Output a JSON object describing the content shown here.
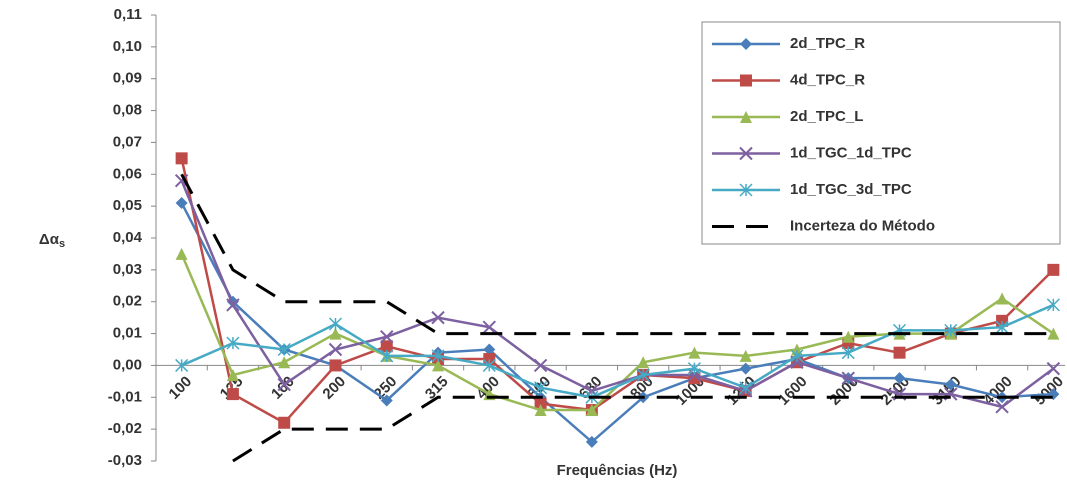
{
  "chart_data": {
    "type": "line",
    "x_label": "Frequências (Hz)",
    "y_label": {
      "main": "Δα",
      "sub": "s"
    },
    "categories": [
      "100",
      "125",
      "160",
      "200",
      "250",
      "315",
      "400",
      "500",
      "630",
      "800",
      "1000",
      "1250",
      "1600",
      "2000",
      "2500",
      "3150",
      "4000",
      "5000"
    ],
    "ylim": [
      -0.03,
      0.11
    ],
    "yticks": [
      {
        "value": -0.03,
        "label": "-0,03"
      },
      {
        "value": -0.02,
        "label": "-0,02"
      },
      {
        "value": -0.01,
        "label": "-0,01"
      },
      {
        "value": 0,
        "label": "0,00"
      },
      {
        "value": 0.01,
        "label": "0,01"
      },
      {
        "value": 0.02,
        "label": "0,02"
      },
      {
        "value": 0.03,
        "label": "0,03"
      },
      {
        "value": 0.04,
        "label": "0,04"
      },
      {
        "value": 0.05,
        "label": "0,05"
      },
      {
        "value": 0.06,
        "label": "0,06"
      },
      {
        "value": 0.07,
        "label": "0,07"
      },
      {
        "value": 0.08,
        "label": "0,08"
      },
      {
        "value": 0.09,
        "label": "0,09"
      },
      {
        "value": 0.1,
        "label": "0,10"
      },
      {
        "value": 0.11,
        "label": "0,11"
      }
    ],
    "legend": "top-right",
    "series": [
      {
        "name": "2d_TPC_R",
        "color": "#4a7ebb",
        "marker": "diamond",
        "values": [
          0.051,
          0.02,
          0.005,
          0.0,
          -0.011,
          0.004,
          0.005,
          -0.01,
          -0.024,
          -0.01,
          -0.004,
          -0.001,
          0.002,
          -0.004,
          -0.004,
          -0.006,
          -0.01,
          -0.009
        ]
      },
      {
        "name": "4d_TPC_R",
        "color": "#be4b48",
        "marker": "square",
        "values": [
          0.065,
          -0.009,
          -0.018,
          0.0,
          0.006,
          0.002,
          0.002,
          -0.012,
          -0.014,
          -0.003,
          -0.004,
          -0.008,
          0.001,
          0.007,
          0.004,
          0.01,
          0.014,
          0.03
        ]
      },
      {
        "name": "2d_TPC_L",
        "color": "#98b954",
        "marker": "triangle",
        "values": [
          0.035,
          -0.003,
          0.001,
          0.01,
          0.003,
          0.0,
          -0.009,
          -0.014,
          -0.014,
          0.001,
          0.004,
          0.003,
          0.005,
          0.009,
          0.01,
          0.01,
          0.021,
          0.01
        ]
      },
      {
        "name": "1d_TGC_1d_TPC",
        "color": "#7d60a0",
        "marker": "x",
        "values": [
          0.058,
          0.019,
          -0.006,
          0.005,
          0.009,
          0.015,
          0.012,
          0.0,
          -0.008,
          -0.003,
          -0.003,
          -0.008,
          0.001,
          -0.004,
          -0.009,
          -0.009,
          -0.013,
          -0.001
        ]
      },
      {
        "name": "1d_TGC_3d_TPC",
        "color": "#46aac5",
        "marker": "star",
        "values": [
          0.0,
          0.007,
          0.005,
          0.013,
          0.003,
          0.003,
          0.0,
          -0.007,
          -0.01,
          -0.003,
          -0.001,
          -0.007,
          0.003,
          0.004,
          0.011,
          0.011,
          0.012,
          0.019
        ]
      },
      {
        "name": "Incerteza do Método",
        "color": "#000000",
        "dash": true,
        "values": [
          0.06,
          0.03,
          0.02,
          0.02,
          0.02,
          0.01,
          0.01,
          0.01,
          0.01,
          0.01,
          0.01,
          0.01,
          0.01,
          0.01,
          0.01,
          0.01,
          0.01,
          0.01
        ],
        "lower": [
          null,
          -0.03,
          -0.02,
          -0.02,
          -0.02,
          -0.01,
          -0.01,
          -0.01,
          -0.01,
          -0.01,
          -0.01,
          -0.01,
          -0.01,
          -0.01,
          -0.01,
          -0.01,
          -0.01,
          -0.01
        ]
      }
    ]
  }
}
